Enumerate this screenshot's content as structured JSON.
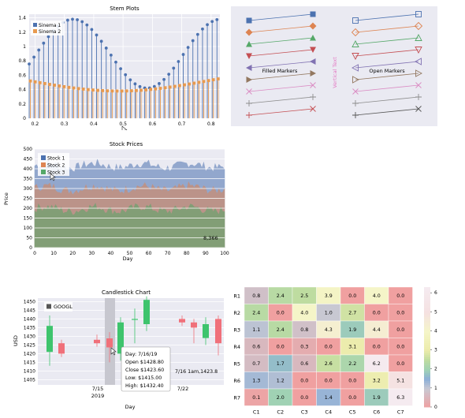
{
  "stem": {
    "title": "Stem Plots",
    "legend": [
      "Sinema 1",
      "Sinema 2"
    ],
    "colors": [
      "#4c72b0",
      "#e89a4f"
    ],
    "xticks": [
      "0.2",
      "0.3",
      "0.4",
      "0.5",
      "0.6",
      "0.7",
      "0.8"
    ],
    "yticks": [
      "0",
      "0.2",
      "0.4",
      "0.6",
      "0.8",
      "1",
      "1.2",
      "1.4"
    ]
  },
  "markers": {
    "filled_label": "Filled Markers",
    "open_label": "Open Markers",
    "vertical_label": "Vertical Text",
    "colors": [
      "#4c72b0",
      "#dd8452",
      "#55a868",
      "#c44e52",
      "#8172b2",
      "#937860",
      "#da8bc3",
      "#8c8c8c"
    ]
  },
  "stock": {
    "title": "Stock Prices",
    "legend": [
      "Stock 1",
      "Stock 2",
      "Stock 3"
    ],
    "colors": [
      "#4c72b0",
      "#dd8452",
      "#55a868"
    ],
    "xlabel": "Day",
    "ylabel": "Price",
    "xticks": [
      "0",
      "10",
      "20",
      "30",
      "40",
      "50",
      "60",
      "70",
      "80",
      "90",
      "100"
    ],
    "yticks": [
      "0",
      "50",
      "100",
      "150",
      "200",
      "250",
      "300",
      "350",
      "400",
      "450",
      "500"
    ],
    "readout": "8,366"
  },
  "candle": {
    "title": "Candlestick Chart",
    "legend": "GOOGL",
    "ylabel": "USD",
    "xlabel": "Day",
    "xtick_1": "7/15",
    "xtick_1b": "2019",
    "xtick_2": "7/22",
    "yticks": [
      "1405",
      "1410",
      "1415",
      "1420",
      "1425",
      "1430",
      "1435",
      "1440",
      "1445",
      "1450"
    ],
    "tooltip": {
      "day": "Day:  7/16/19",
      "open": "Open  $1428.80",
      "close": "Close  $1423.60",
      "low": "Low:  $1415.00",
      "high": "High: $1432.40"
    },
    "hover_readout": "7/16 1am,1423.8"
  },
  "heatmap": {
    "rows": [
      "R1",
      "R2",
      "R3",
      "R4",
      "R5",
      "R6",
      "R7"
    ],
    "cols": [
      "C1",
      "C2",
      "C3",
      "C4",
      "C5",
      "C6",
      "C7"
    ],
    "values": [
      [
        "0.8",
        "2.4",
        "2.5",
        "3.9",
        "0.0",
        "4.0",
        "0.0"
      ],
      [
        "2.4",
        "0.0",
        "4.0",
        "1.0",
        "2.7",
        "0.0",
        "0.0"
      ],
      [
        "1.1",
        "2.4",
        "0.8",
        "4.3",
        "1.9",
        "4.4",
        "0.0"
      ],
      [
        "0.6",
        "0.0",
        "0.3",
        "0.0",
        "3.1",
        "0.0",
        "0.0"
      ],
      [
        "0.7",
        "1.7",
        "0.6",
        "2.6",
        "2.2",
        "6.2",
        "0.0"
      ],
      [
        "1.3",
        "1.2",
        "0.0",
        "0.0",
        "0.0",
        "3.2",
        "5.1"
      ],
      [
        "0.1",
        "2.0",
        "0.0",
        "1.4",
        "0.0",
        "1.9",
        "6.3"
      ]
    ],
    "colorbar_ticks": [
      "0",
      "1",
      "2",
      "3",
      "4",
      "5",
      "6"
    ]
  }
}
